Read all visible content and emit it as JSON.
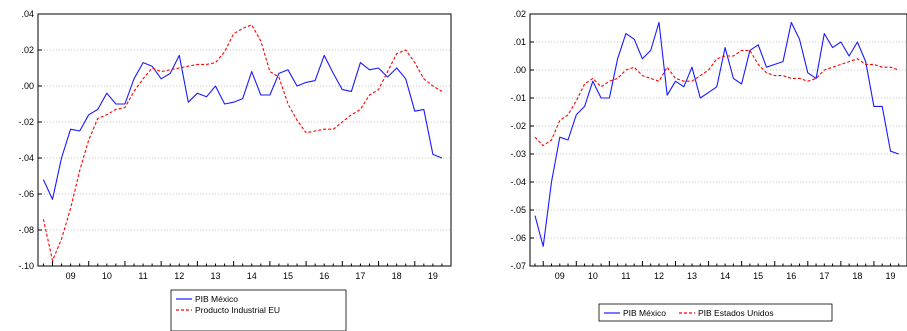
{
  "chart_data": [
    {
      "type": "line",
      "x": [
        2008.75,
        2009.0,
        2009.25,
        2009.5,
        2009.75,
        2010.0,
        2010.25,
        2010.5,
        2010.75,
        2011.0,
        2011.25,
        2011.5,
        2011.75,
        2012.0,
        2012.25,
        2012.5,
        2012.75,
        2013.0,
        2013.25,
        2013.5,
        2013.75,
        2014.0,
        2014.25,
        2014.5,
        2014.75,
        2015.0,
        2015.25,
        2015.5,
        2015.75,
        2016.0,
        2016.25,
        2016.5,
        2016.75,
        2017.0,
        2017.25,
        2017.5,
        2017.75,
        2018.0,
        2018.25,
        2018.5,
        2018.75,
        2019.0,
        2019.25,
        2019.5,
        2019.75
      ],
      "series": [
        {
          "name": "PIB México",
          "color": "#1a1aff",
          "style": "solid",
          "values": [
            -0.052,
            -0.063,
            -0.04,
            -0.024,
            -0.025,
            -0.016,
            -0.013,
            -0.004,
            -0.01,
            -0.01,
            0.004,
            0.013,
            0.011,
            0.004,
            0.007,
            0.017,
            -0.009,
            -0.004,
            -0.006,
            0.0,
            -0.01,
            -0.009,
            -0.007,
            0.008,
            -0.005,
            -0.005,
            0.007,
            0.009,
            0.0,
            0.002,
            0.003,
            0.017,
            0.007,
            -0.002,
            -0.003,
            0.013,
            0.009,
            0.01,
            0.005,
            0.01,
            0.004,
            -0.014,
            -0.013,
            -0.038,
            -0.04
          ]
        },
        {
          "name": "Producto Industrial EU",
          "color": "#ff0000",
          "style": "dashed",
          "values": [
            -0.074,
            -0.097,
            -0.085,
            -0.068,
            -0.047,
            -0.03,
            -0.018,
            -0.016,
            -0.013,
            -0.012,
            -0.003,
            0.004,
            0.01,
            0.008,
            0.009,
            0.01,
            0.011,
            0.012,
            0.012,
            0.013,
            0.019,
            0.029,
            0.032,
            0.034,
            0.025,
            0.008,
            0.005,
            -0.01,
            -0.019,
            -0.026,
            -0.025,
            -0.024,
            -0.024,
            -0.02,
            -0.016,
            -0.013,
            -0.005,
            -0.002,
            0.008,
            0.018,
            0.02,
            0.013,
            0.004,
            0.0,
            -0.003
          ]
        }
      ],
      "x_ticks": [
        "09",
        "10",
        "11",
        "12",
        "13",
        "14",
        "15",
        "16",
        "17",
        "18",
        "19"
      ],
      "y_ticks": [
        ".04",
        ".02",
        ".00",
        "-.02",
        "-.04",
        "-.06",
        "-.08",
        "-.10"
      ],
      "ylim": [
        -0.1,
        0.04
      ],
      "xlim": [
        2008.6,
        2020.0
      ],
      "legend_placement": "bottom"
    },
    {
      "type": "line",
      "x": [
        2008.75,
        2009.0,
        2009.25,
        2009.5,
        2009.75,
        2010.0,
        2010.25,
        2010.5,
        2010.75,
        2011.0,
        2011.25,
        2011.5,
        2011.75,
        2012.0,
        2012.25,
        2012.5,
        2012.75,
        2013.0,
        2013.25,
        2013.5,
        2013.75,
        2014.0,
        2014.25,
        2014.5,
        2014.75,
        2015.0,
        2015.25,
        2015.5,
        2015.75,
        2016.0,
        2016.25,
        2016.5,
        2016.75,
        2017.0,
        2017.25,
        2017.5,
        2017.75,
        2018.0,
        2018.25,
        2018.5,
        2018.75,
        2019.0,
        2019.25,
        2019.5,
        2019.75
      ],
      "series": [
        {
          "name": "PIB México",
          "color": "#1a1aff",
          "style": "solid",
          "values": [
            -0.052,
            -0.063,
            -0.04,
            -0.024,
            -0.025,
            -0.016,
            -0.013,
            -0.004,
            -0.01,
            -0.01,
            0.004,
            0.013,
            0.011,
            0.004,
            0.007,
            0.017,
            -0.009,
            -0.004,
            -0.006,
            0.001,
            -0.01,
            -0.008,
            -0.006,
            0.008,
            -0.003,
            -0.005,
            0.007,
            0.009,
            0.001,
            0.002,
            0.003,
            0.017,
            0.011,
            -0.001,
            -0.003,
            0.013,
            0.008,
            0.01,
            0.005,
            0.01,
            0.003,
            -0.013,
            -0.013,
            -0.029,
            -0.03
          ]
        },
        {
          "name": "PIB Estados Unidos",
          "color": "#ff0000",
          "style": "dashed",
          "values": [
            -0.024,
            -0.027,
            -0.025,
            -0.018,
            -0.016,
            -0.011,
            -0.005,
            -0.003,
            -0.006,
            -0.004,
            -0.003,
            0.0,
            0.001,
            -0.002,
            -0.003,
            -0.004,
            0.001,
            -0.003,
            -0.004,
            -0.004,
            -0.002,
            0.0,
            0.004,
            0.005,
            0.005,
            0.007,
            0.007,
            0.002,
            -0.001,
            -0.002,
            -0.002,
            -0.003,
            -0.003,
            -0.004,
            -0.003,
            0.0,
            0.001,
            0.002,
            0.003,
            0.004,
            0.002,
            0.002,
            0.001,
            0.001,
            0.0
          ]
        }
      ],
      "x_ticks": [
        "09",
        "10",
        "11",
        "12",
        "13",
        "14",
        "15",
        "16",
        "17",
        "18",
        "19"
      ],
      "y_ticks": [
        ".02",
        ".01",
        ".00",
        "-.01",
        "-.02",
        "-.03",
        "-.04",
        "-.05",
        "-.06",
        "-.07"
      ],
      "ylim": [
        -0.07,
        0.02
      ],
      "xlim": [
        2008.6,
        2020.0
      ],
      "legend_placement": "bottom"
    }
  ]
}
